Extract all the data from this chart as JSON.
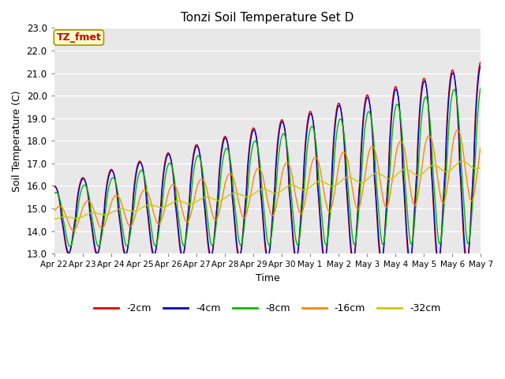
{
  "title": "Tonzi Soil Temperature Set D",
  "xlabel": "Time",
  "ylabel": "Soil Temperature (C)",
  "ylim": [
    13.0,
    23.0
  ],
  "yticks": [
    13.0,
    14.0,
    15.0,
    16.0,
    17.0,
    18.0,
    19.0,
    20.0,
    21.0,
    22.0,
    23.0
  ],
  "xtick_labels": [
    "Apr 22",
    "Apr 23",
    "Apr 24",
    "Apr 25",
    "Apr 26",
    "Apr 27",
    "Apr 28",
    "Apr 29",
    "Apr 30",
    "May 1",
    "May 2",
    "May 3",
    "May 4",
    "May 5",
    "May 6",
    "May 7"
  ],
  "line_colors": [
    "#dd0000",
    "#0000cc",
    "#00bb00",
    "#ff8800",
    "#cccc00"
  ],
  "line_labels": [
    "-2cm",
    "-4cm",
    "-8cm",
    "-16cm",
    "-32cm"
  ],
  "bg_color": "#e8e8e8",
  "annotation_text": "TZ_fmet",
  "annotation_bg": "#ffffcc",
  "annotation_border": "#999900",
  "annotation_text_color": "#cc0000",
  "n_points": 1440,
  "n_days": 15
}
